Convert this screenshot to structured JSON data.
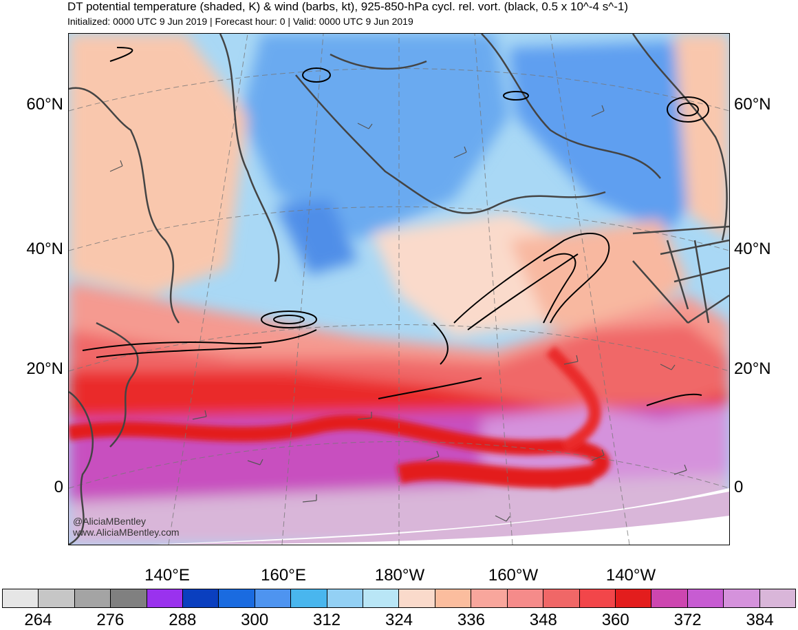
{
  "title": "DT potential temperature (shaded, K) & wind (barbs, kt), 925-850-hPa cycl. rel. vort. (black, 0.5 x 10^-4 s^-1)",
  "subtitle": "Initialized: 0000 UTC 9 Jun 2019 | Forecast hour: 0 | Valid: 0000 UTC 9 Jun 2019",
  "lat_labels": [
    "60°N",
    "40°N",
    "20°N",
    "0"
  ],
  "lon_labels": [
    "140°E",
    "160°E",
    "180°W",
    "160°W",
    "140°W"
  ],
  "watermark": {
    "handle": "@AliciaMBentley",
    "url": "www.AliciaMBentley.com"
  },
  "colorbar": {
    "colors": [
      "#e6e6e6",
      "#c6c6c6",
      "#a4a4a4",
      "#808080",
      "#9a32ee",
      "#0a3fbf",
      "#1a6be0",
      "#4e94f0",
      "#49b6ee",
      "#93d0f4",
      "#b9e6f6",
      "#fadacb",
      "#fbbd9e",
      "#f8a69c",
      "#f58b8a",
      "#f06767",
      "#f2464a",
      "#e31d1d",
      "#cd46b0",
      "#c75cd2",
      "#d592dc",
      "#d9b6d9"
    ],
    "labels": [
      "264",
      "276",
      "288",
      "300",
      "312",
      "324",
      "336",
      "348",
      "360",
      "372",
      "384"
    ]
  },
  "field_colors": {
    "cold_blue": "#5e9ff0",
    "light_blue": "#a9d8f5",
    "peach": "#f9c7ad",
    "salmon": "#f59a90",
    "red": "#ea2a2a",
    "magenta": "#c84fbf",
    "lavender": "#d8a6da",
    "land_outline": "#444444"
  }
}
